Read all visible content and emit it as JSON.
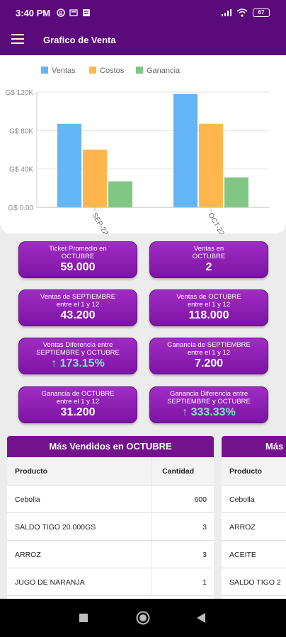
{
  "status": {
    "time": "3:40 PM",
    "battery": "67"
  },
  "appbar": {
    "title": "Grafico de Venta"
  },
  "chart_data": {
    "type": "bar",
    "categories": [
      "SEP-22",
      "OCT-22"
    ],
    "series": [
      {
        "name": "Ventas",
        "color": "#64b5f6",
        "values": [
          87000,
          118000
        ]
      },
      {
        "name": "Costos",
        "color": "#ffb74d",
        "values": [
          60000,
          87000
        ]
      },
      {
        "name": "Ganancia",
        "color": "#81c784",
        "values": [
          27000,
          31200
        ]
      }
    ],
    "yticks": [
      "G$ 0.00",
      "G$ 40K",
      "G$ 80K",
      "G$ 120K"
    ],
    "ylim": [
      0,
      120000
    ],
    "legend": "top"
  },
  "kpis": [
    {
      "label1": "Ticket Promedio en",
      "label2": "OCTUBRE",
      "value": "59.000"
    },
    {
      "label1": "Ventas en",
      "label2": "OCTUBRE",
      "value": "2"
    },
    {
      "label1": "Ventas de SEPTIEMBRE",
      "label2": "entre el 1 y 12",
      "value": "43.200"
    },
    {
      "label1": "Ventas de OCTUBRE",
      "label2": "entre el 1 y 12",
      "value": "118.000"
    },
    {
      "label1": "Ventas Diferencia entre",
      "label2": "SEPTIEMBRE y OCTUBRE",
      "value": "↑ 173.15%"
    },
    {
      "label1": "Ganancia de SEPTIEMBRE",
      "label2": "entre el 1 y 12",
      "value": "7.200"
    },
    {
      "label1": "Ganancia de OCTUBRE",
      "label2": "entre el 1 y 12",
      "value": "31.200"
    },
    {
      "label1": "Ganancia Diferencia entre",
      "label2": "SEPTIEMBRE y OCTUBRE",
      "value": "↑ 333.33%"
    }
  ],
  "table1": {
    "title": "Más Vendidos en OCTUBRE",
    "col1": "Producto",
    "col2": "Cantidad",
    "rows": [
      {
        "producto": "Cebolla",
        "cantidad": "600"
      },
      {
        "producto": "SALDO TIGO 20.000GS",
        "cantidad": "3"
      },
      {
        "producto": "ARROZ",
        "cantidad": "3"
      },
      {
        "producto": "JUGO DE NARANJA",
        "cantidad": "1"
      }
    ]
  },
  "table2": {
    "title": "Más",
    "col1": "Producto",
    "rows": [
      {
        "producto": "Cebolla"
      },
      {
        "producto": "ARROZ"
      },
      {
        "producto": "ACEITE"
      },
      {
        "producto": "SALDO TIGO 2"
      }
    ]
  }
}
